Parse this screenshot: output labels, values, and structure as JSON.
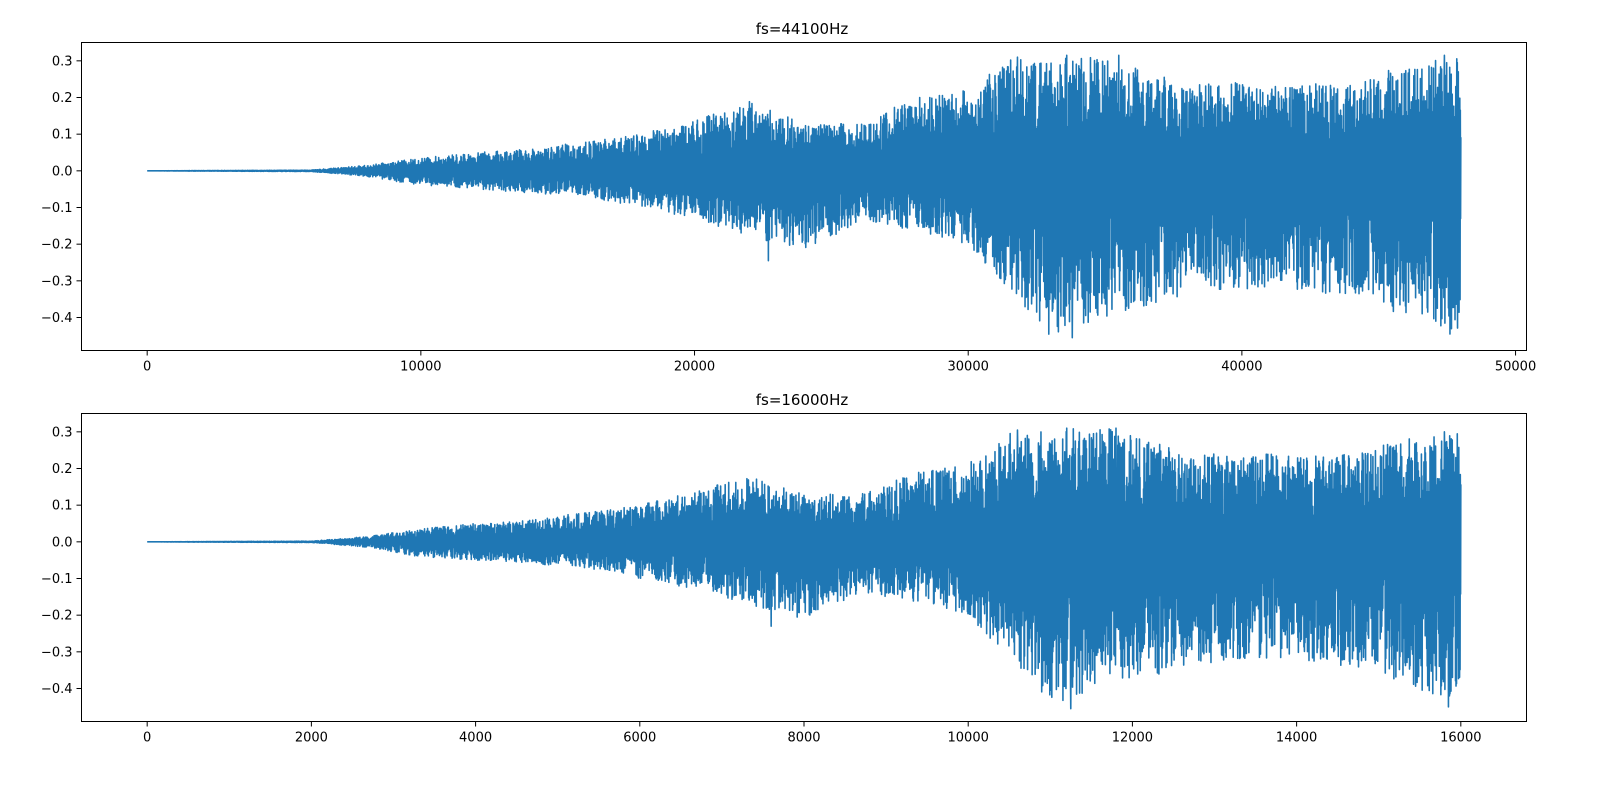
{
  "figure": {
    "background": "#ffffff"
  },
  "chart_data": [
    {
      "type": "line",
      "title": "fs=44100Hz",
      "xlabel": "",
      "ylabel": "",
      "xlim": [
        -2400,
        50400
      ],
      "ylim": [
        -0.49,
        0.35
      ],
      "xticks": [
        0,
        10000,
        20000,
        30000,
        40000,
        50000
      ],
      "xtick_labels": [
        "0",
        "10000",
        "20000",
        "30000",
        "40000",
        "50000"
      ],
      "yticks": [
        0.3,
        0.2,
        0.1,
        0.0,
        -0.1,
        -0.2,
        -0.3,
        -0.4
      ],
      "ytick_labels": [
        "0.3",
        "0.2",
        "0.1",
        "0.0",
        "−0.1",
        "−0.2",
        "−0.3",
        "−0.4"
      ],
      "grid": false,
      "series": [
        {
          "color": "#1f77b4",
          "x_start": 0,
          "x_end": 48000,
          "envelope": {
            "x": [
              0,
              6000,
              8000,
              10000,
              12000,
              14000,
              16000,
              18000,
              20000,
              22000,
              24000,
              26000,
              28000,
              30000,
              31500,
              33000,
              35000,
              38000,
              41000,
              44000,
              46000,
              48000
            ],
            "upper": [
              0.0,
              0.002,
              0.015,
              0.035,
              0.05,
              0.06,
              0.08,
              0.1,
              0.14,
              0.19,
              0.13,
              0.13,
              0.2,
              0.22,
              0.31,
              0.31,
              0.31,
              0.24,
              0.24,
              0.24,
              0.29,
              0.31
            ],
            "lower": [
              0.0,
              -0.002,
              -0.015,
              -0.04,
              -0.05,
              -0.06,
              -0.07,
              -0.1,
              -0.13,
              -0.18,
              -0.22,
              -0.14,
              -0.16,
              -0.2,
              -0.33,
              -0.45,
              -0.4,
              -0.34,
              -0.32,
              -0.34,
              -0.4,
              -0.44
            ]
          },
          "peaks": [
            {
              "x": 22700,
              "y": -0.245
            },
            {
              "x": 31800,
              "y": 0.31
            },
            {
              "x": 33600,
              "y": 0.315
            },
            {
              "x": 33800,
              "y": -0.455
            },
            {
              "x": 35500,
              "y": 0.315
            },
            {
              "x": 47400,
              "y": 0.315
            },
            {
              "x": 47600,
              "y": -0.445
            }
          ]
        }
      ]
    },
    {
      "type": "line",
      "title": "fs=16000Hz",
      "xlabel": "",
      "ylabel": "",
      "xlim": [
        -800,
        16800
      ],
      "ylim": [
        -0.49,
        0.35
      ],
      "xticks": [
        0,
        2000,
        4000,
        6000,
        8000,
        10000,
        12000,
        14000,
        16000
      ],
      "xtick_labels": [
        "0",
        "2000",
        "4000",
        "6000",
        "8000",
        "10000",
        "12000",
        "14000",
        "16000"
      ],
      "yticks": [
        0.3,
        0.2,
        0.1,
        0.0,
        -0.1,
        -0.2,
        -0.3,
        -0.4
      ],
      "ytick_labels": [
        "0.3",
        "0.2",
        "0.1",
        "0.0",
        "−0.1",
        "−0.2",
        "−0.3",
        "−0.4"
      ],
      "grid": false,
      "series": [
        {
          "color": "#1f77b4",
          "x_start": 0,
          "x_end": 16000,
          "envelope": {
            "x": [
              0,
              2000,
              2700,
              3300,
              4000,
              4700,
              5300,
              6000,
              6700,
              7300,
              8000,
              8700,
              9300,
              10000,
              10500,
              11000,
              11700,
              12700,
              13700,
              14700,
              15300,
              16000
            ],
            "upper": [
              0.0,
              0.002,
              0.015,
              0.035,
              0.05,
              0.06,
              0.08,
              0.1,
              0.14,
              0.18,
              0.13,
              0.13,
              0.19,
              0.22,
              0.3,
              0.31,
              0.31,
              0.24,
              0.24,
              0.24,
              0.28,
              0.3
            ],
            "lower": [
              0.0,
              -0.002,
              -0.015,
              -0.04,
              -0.05,
              -0.06,
              -0.07,
              -0.1,
              -0.13,
              -0.17,
              -0.21,
              -0.14,
              -0.16,
              -0.2,
              -0.32,
              -0.45,
              -0.4,
              -0.34,
              -0.32,
              -0.34,
              -0.39,
              -0.44
            ]
          },
          "peaks": [
            {
              "x": 7600,
              "y": -0.23
            },
            {
              "x": 10600,
              "y": 0.305
            },
            {
              "x": 11200,
              "y": 0.31
            },
            {
              "x": 11250,
              "y": -0.455
            },
            {
              "x": 11800,
              "y": 0.31
            },
            {
              "x": 15800,
              "y": 0.3
            },
            {
              "x": 15850,
              "y": -0.45
            }
          ]
        }
      ]
    }
  ]
}
